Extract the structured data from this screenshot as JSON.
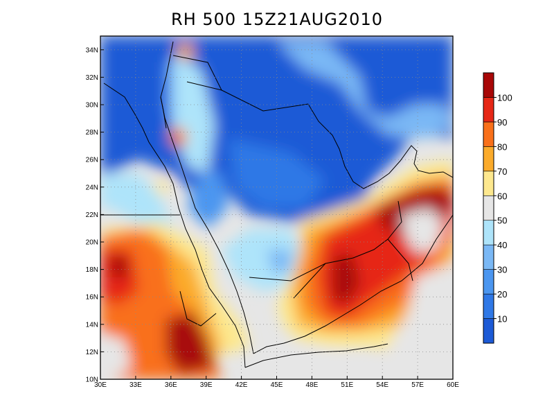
{
  "title": "RH 500 15Z21AUG2010",
  "map": {
    "lon_range": [
      30,
      60
    ],
    "lat_range": [
      10,
      35
    ],
    "x_ticks": [
      "30E",
      "33E",
      "36E",
      "39E",
      "42E",
      "45E",
      "48E",
      "51E",
      "54E",
      "57E",
      "60E"
    ],
    "y_ticks": [
      "10N",
      "12N",
      "14N",
      "16N",
      "18N",
      "20N",
      "22N",
      "24N",
      "26N",
      "28N",
      "30N",
      "32N",
      "34N"
    ],
    "grid": "dotted",
    "background_color": "#e6e6e6",
    "coastline_color": "#000000"
  },
  "colorbar": {
    "position": "right",
    "levels": [
      0,
      10,
      20,
      30,
      40,
      50,
      60,
      70,
      80,
      90,
      100,
      110
    ],
    "tick_labels": [
      "10",
      "20",
      "30",
      "40",
      "50",
      "60",
      "70",
      "80",
      "90",
      "100"
    ],
    "colors": [
      "#1c5ad6",
      "#2f78e6",
      "#4b96f0",
      "#7ab8f5",
      "#aee4fa",
      "#e6e6e6",
      "#fde88e",
      "#fbab2b",
      "#f9701a",
      "#e62716",
      "#a80707"
    ]
  }
}
